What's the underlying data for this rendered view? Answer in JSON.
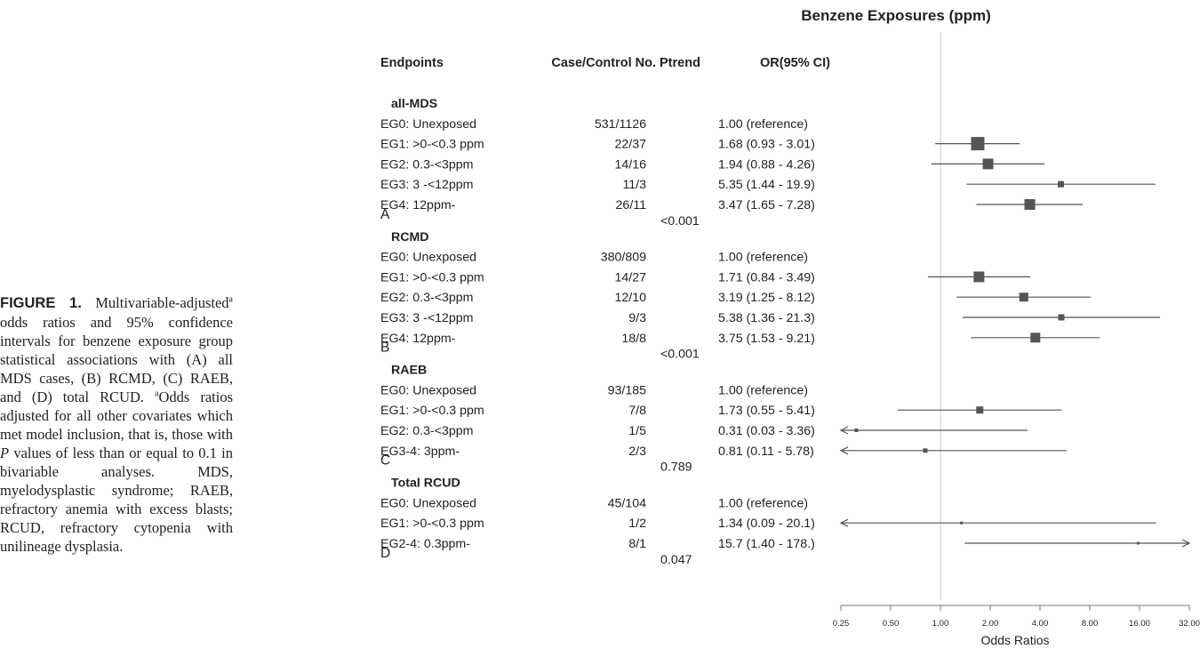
{
  "caption": {
    "label": "FIGURE 1.",
    "text_1": " Multivariable-adjusted",
    "sup_1": "a",
    "text_2": " odds ratios and 95% confidence intervals for benzene exposure group statistical associations with (A) all MDS cases, (B) RCMD, (C) RAEB, and (D) total RCUD. ",
    "sup_2": "a",
    "text_3": "Odds ratios adjusted for all other covariates which met model inclusion, that is, those with ",
    "italic_p": "P",
    "text_4": " values of less than or equal to 0.1 in bivariable analyses. MDS, myelodysplastic syndrome; RAEB, refractory anemia with excess blasts; RCUD, refractory cytopenia with unilineage dysplasia."
  },
  "chart_data": {
    "type": "forest",
    "title": "Benzene Exposures (ppm)",
    "columns": [
      "Endpoints",
      "Case/Control No.",
      "Ptrend",
      "OR(95% CI)"
    ],
    "xlabel": "Odds Ratios",
    "x_scale": "log2",
    "x_ticks": [
      "0.25",
      "0.50",
      "1.00",
      "2.00",
      "4.00",
      "8.00",
      "16.00",
      "32.00"
    ],
    "xlim": [
      0.25,
      32
    ],
    "reference_line": 1.0,
    "groups": [
      {
        "title": "all-MDS",
        "panel": "A",
        "ptrend": "<0.001",
        "rows": [
          {
            "label": "EG0: Unexposed",
            "n": "531/1126",
            "or_text": "1.00 (reference)",
            "or": null,
            "lo": null,
            "hi": null,
            "w": null
          },
          {
            "label": "EG1: >0-<0.3 ppm",
            "n": "22/37",
            "or_text": "1.68 (0.93 - 3.01)",
            "or": 1.68,
            "lo": 0.93,
            "hi": 3.01,
            "w": 15
          },
          {
            "label": "EG2: 0.3-<3ppm",
            "n": "14/16",
            "or_text": "1.94 (0.88 - 4.26)",
            "or": 1.94,
            "lo": 0.88,
            "hi": 4.26,
            "w": 12
          },
          {
            "label": "EG3: 3 -<12ppm",
            "n": "11/3",
            "or_text": "5.35 (1.44 - 19.9)",
            "or": 5.35,
            "lo": 1.44,
            "hi": 19.9,
            "w": 7
          },
          {
            "label": "EG4: 12ppm-",
            "n": "26/11",
            "or_text": "3.47 (1.65 - 7.28)",
            "or": 3.47,
            "lo": 1.65,
            "hi": 7.28,
            "w": 12
          }
        ]
      },
      {
        "title": "RCMD",
        "panel": "B",
        "ptrend": "<0.001",
        "rows": [
          {
            "label": "EG0: Unexposed",
            "n": "380/809",
            "or_text": "1.00 (reference)",
            "or": null,
            "lo": null,
            "hi": null,
            "w": null
          },
          {
            "label": "EG1: >0-<0.3 ppm",
            "n": "14/27",
            "or_text": "1.71 (0.84 - 3.49)",
            "or": 1.71,
            "lo": 0.84,
            "hi": 3.49,
            "w": 12
          },
          {
            "label": "EG2: 0.3-<3ppm",
            "n": "12/10",
            "or_text": "3.19 (1.25 - 8.12)",
            "or": 3.19,
            "lo": 1.25,
            "hi": 8.12,
            "w": 10
          },
          {
            "label": "EG3: 3 -<12ppm",
            "n": "9/3",
            "or_text": "5.38 (1.36 - 21.3)",
            "or": 5.38,
            "lo": 1.36,
            "hi": 21.3,
            "w": 7
          },
          {
            "label": "EG4: 12ppm-",
            "n": "18/8",
            "or_text": "3.75 (1.53 - 9.21)",
            "or": 3.75,
            "lo": 1.53,
            "hi": 9.21,
            "w": 11
          }
        ]
      },
      {
        "title": "RAEB",
        "panel": "C",
        "ptrend": "0.789",
        "rows": [
          {
            "label": "EG0: Unexposed",
            "n": "93/185",
            "or_text": "1.00 (reference)",
            "or": null,
            "lo": null,
            "hi": null,
            "w": null
          },
          {
            "label": "EG1: >0-<0.3 ppm",
            "n": "7/8",
            "or_text": "1.73 (0.55 - 5.41)",
            "or": 1.73,
            "lo": 0.55,
            "hi": 5.41,
            "w": 8
          },
          {
            "label": "EG2: 0.3-<3ppm",
            "n": "1/5",
            "or_text": "0.31 (0.03 - 3.36)",
            "or": 0.31,
            "lo": 0.03,
            "hi": 3.36,
            "w": 4
          },
          {
            "label": "EG3-4: 3ppm-",
            "n": "2/3",
            "or_text": "0.81 (0.11 - 5.78)",
            "or": 0.81,
            "lo": 0.11,
            "hi": 5.78,
            "w": 5
          }
        ]
      },
      {
        "title": "Total RCUD",
        "panel": "D",
        "ptrend": "0.047",
        "rows": [
          {
            "label": "EG0: Unexposed",
            "n": "45/104",
            "or_text": "1.00 (reference)",
            "or": null,
            "lo": null,
            "hi": null,
            "w": null
          },
          {
            "label": "EG1: >0-<0.3 ppm",
            "n": "1/2",
            "or_text": "1.34 (0.09 - 20.1)",
            "or": 1.34,
            "lo": 0.09,
            "hi": 20.1,
            "w": 3
          },
          {
            "label": "EG2-4: 0.3ppm-",
            "n": "8/1",
            "or_text": "15.7 (1.40 - 178.)",
            "or": 15.7,
            "lo": 1.4,
            "hi": 178.0,
            "w": 3
          }
        ]
      }
    ]
  }
}
